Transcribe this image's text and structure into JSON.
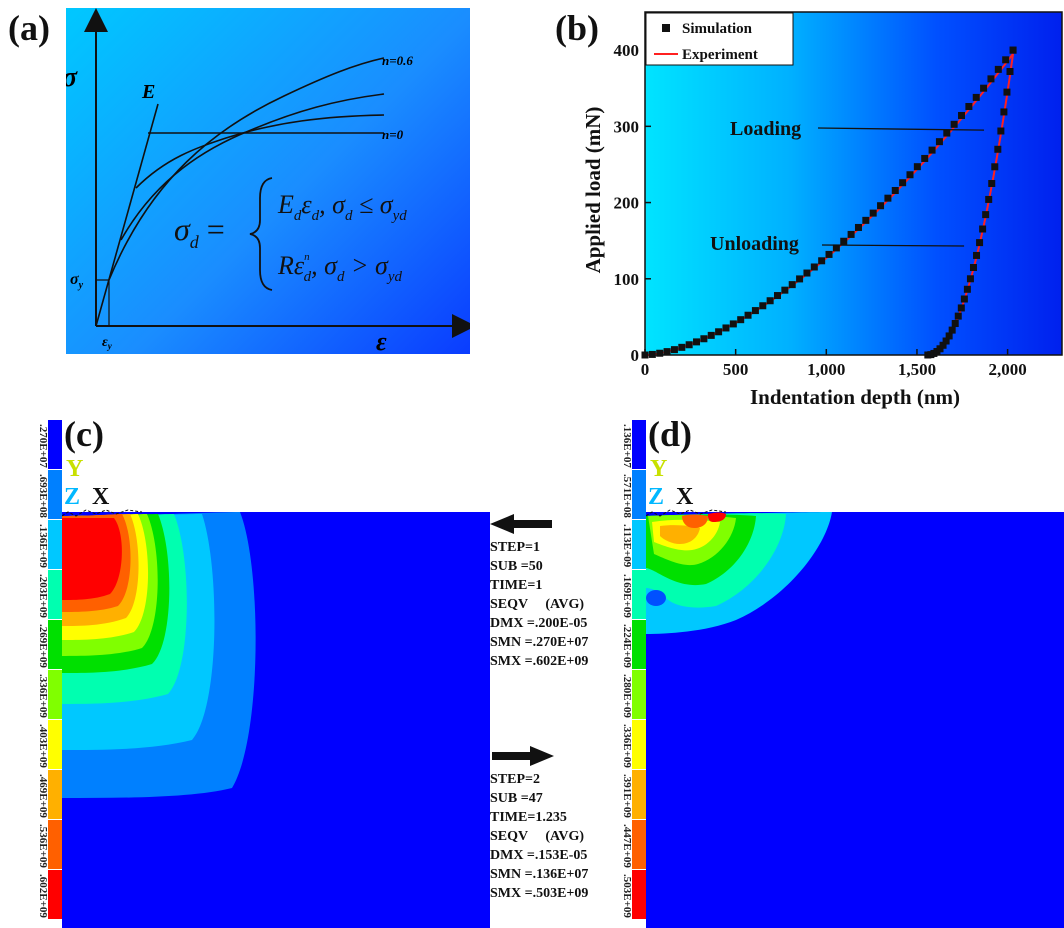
{
  "panels": {
    "a": {
      "label": "(a)",
      "y_symbol": "σ",
      "x_symbol": "ε",
      "E_label": "E",
      "sigma_y_label": "σ",
      "sigma_y_sub": "y",
      "eps_y_label": "ε",
      "eps_y_sub": "y",
      "n_top_label": "n=0.6",
      "n_bottom_label": "n=0",
      "equation": {
        "lhs": "σ",
        "lhs_sub": "d",
        "eq": "=",
        "row1": "E",
        "row1_sub": "d",
        "row1_b": "ε",
        "row1_b_sub": "d",
        "row1_c": ", σ",
        "row1_c_sub": "d",
        "row1_d": " ≤ σ",
        "row1_d_sub": "yd",
        "row2": "Rε",
        "row2_sup": "n",
        "row2_sub": "d",
        "row2_c": ", σ",
        "row2_c_sub": "d",
        "row2_d": " > σ",
        "row2_d_sub": "yd"
      }
    },
    "b": {
      "label": "(b)"
    },
    "c": {
      "label": "(c)",
      "triad": {
        "y": "Y",
        "z": "Z",
        "x": "X"
      },
      "colorbar_labels": [
        ".270E+07",
        ".693E+08",
        ".136E+09",
        ".203E+09",
        ".269E+09",
        ".336E+09",
        ".403E+09",
        ".469E+09",
        ".536E+09",
        ".602E+09"
      ]
    },
    "d": {
      "label": "(d)",
      "triad": {
        "y": "Y",
        "z": "Z",
        "x": "X"
      },
      "colorbar_labels": [
        ".136E+07",
        ".571E+08",
        ".113E+09",
        ".169E+09",
        ".224E+09",
        ".280E+09",
        ".336E+09",
        ".391E+09",
        ".447E+09",
        ".503E+09"
      ]
    }
  },
  "step1": [
    "STEP=1",
    "SUB =50",
    "TIME=1",
    "SEQV     (AVG)",
    "DMX =.200E-05",
    "SMN =.270E+07",
    "SMX =.602E+09"
  ],
  "step2": [
    "STEP=2",
    "SUB =47",
    "TIME=1.235",
    "SEQV     (AVG)",
    "DMX =.153E-05",
    "SMN =.136E+07",
    "SMX =.503E+09"
  ],
  "colors": {
    "contour_bands": [
      "#0000ff",
      "#0080ff",
      "#00c8ff",
      "#00ffb0",
      "#00e000",
      "#80ff00",
      "#ffff00",
      "#ffb000",
      "#ff6000",
      "#ff0000"
    ],
    "experiment_line": "#ff2020",
    "simulation_marker": "#111111"
  },
  "chart_data": {
    "type": "scatter",
    "xlabel": "Indentation depth (nm)",
    "ylabel": "Applied load (mN)",
    "xlim": [
      0,
      2300
    ],
    "ylim": [
      0,
      450
    ],
    "xticks": [
      0,
      500,
      1000,
      1500,
      2000
    ],
    "xtick_labels": [
      "0",
      "500",
      "1,000",
      "1,500",
      "2,000"
    ],
    "yticks": [
      0,
      100,
      200,
      300,
      400
    ],
    "ytick_labels": [
      "0",
      "100",
      "200",
      "300",
      "400"
    ],
    "legend_position": "top-left",
    "annotations": [
      {
        "text": "Loading",
        "x": 1870,
        "y": 295
      },
      {
        "text": "Unloading",
        "x": 1760,
        "y": 143
      }
    ],
    "series": [
      {
        "name": "Simulation",
        "kind": "markers",
        "loading": {
          "x_start": 0,
          "x_end": 2030,
          "y_end": 400,
          "exponent": 1.6,
          "points": 50
        },
        "unloading": {
          "x_start": 1560,
          "x_end": 2030,
          "y_end": 400,
          "exponent": 2.0,
          "points": 28
        }
      },
      {
        "name": "Experiment",
        "kind": "line",
        "loading": {
          "x_start": 0,
          "x_end": 2030,
          "y_end": 395,
          "exponent": 1.6
        },
        "unloading": {
          "x_start": 1560,
          "x_end": 2030,
          "y_end": 395,
          "exponent": 2.0
        }
      }
    ]
  }
}
